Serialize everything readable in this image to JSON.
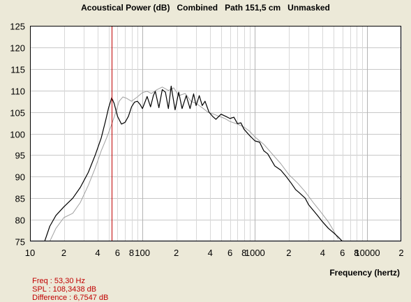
{
  "title": "Acoustical Power (dB)   Combined   Path 151,5 cm   Unmasked",
  "status": {
    "freq": "Freq : 53,30 Hz",
    "spl": "SPL : 108,3438 dB",
    "difference": "Difference : 6,7547 dB"
  },
  "colors": {
    "background": "#ece9d8",
    "plot_bg": "#ffffff",
    "cursor": "#c00000",
    "status_text": "#c00000"
  },
  "chart_data": {
    "type": "line",
    "title": "Acoustical Power (dB)   Combined   Path 151,5 cm   Unmasked",
    "xlabel": "Frequency (hertz)",
    "ylabel": "",
    "x_scale": "log",
    "xlim": [
      10,
      20000
    ],
    "ylim": [
      75,
      125
    ],
    "grid": true,
    "y_ticks": [
      75,
      80,
      85,
      90,
      95,
      100,
      105,
      110,
      115,
      120,
      125
    ],
    "x_tick_labels": [
      {
        "value": 10,
        "label": "10"
      },
      {
        "value": 20,
        "label": "2"
      },
      {
        "value": 40,
        "label": "4"
      },
      {
        "value": 60,
        "label": "6"
      },
      {
        "value": 80,
        "label": "8"
      },
      {
        "value": 100,
        "label": "100"
      },
      {
        "value": 200,
        "label": "2"
      },
      {
        "value": 400,
        "label": "4"
      },
      {
        "value": 600,
        "label": "6"
      },
      {
        "value": 800,
        "label": "8"
      },
      {
        "value": 1000,
        "label": "1000"
      },
      {
        "value": 2000,
        "label": "2"
      },
      {
        "value": 4000,
        "label": "4"
      },
      {
        "value": 6000,
        "label": "6"
      },
      {
        "value": 8000,
        "label": "8"
      },
      {
        "value": 10000,
        "label": "10000"
      },
      {
        "value": 20000,
        "label": "2"
      }
    ],
    "cursor_x": 53.3,
    "series": [
      {
        "color": "#000000",
        "x": [
          13.5,
          15,
          17,
          20,
          24,
          28,
          33,
          38,
          43,
          47,
          50,
          53.3,
          56,
          60,
          65,
          70,
          75,
          80,
          85,
          90,
          95,
          100,
          110,
          118,
          125,
          130,
          140,
          150,
          160,
          170,
          180,
          195,
          210,
          225,
          245,
          265,
          285,
          300,
          320,
          340,
          360,
          390,
          420,
          450,
          500,
          550,
          600,
          650,
          700,
          750,
          800,
          900,
          1000,
          1100,
          1200,
          1300,
          1500,
          1700,
          1900,
          2100,
          2300,
          2500,
          2800,
          3000,
          3300,
          3600,
          4000,
          4500,
          5000,
          5500,
          6000
        ],
        "y": [
          75,
          78.5,
          81,
          83,
          85,
          87.5,
          91,
          95,
          99,
          103,
          106,
          108.3,
          107,
          104,
          102.2,
          102.6,
          104,
          106.2,
          107.3,
          107.5,
          106.8,
          105.8,
          108.6,
          106.2,
          108.8,
          109.8,
          106.0,
          110.2,
          109.6,
          105.8,
          111.0,
          105.5,
          109.6,
          105.8,
          108.8,
          105.8,
          109.2,
          106.5,
          108.8,
          106.5,
          107.5,
          105.0,
          104.0,
          103.3,
          104.5,
          104.0,
          103.5,
          103.8,
          102.3,
          102.5,
          101.0,
          99.5,
          98.3,
          98.0,
          96.0,
          95.3,
          92.5,
          91.5,
          90.0,
          88.5,
          87.0,
          86.2,
          85.0,
          83.5,
          82.2,
          81.0,
          79.5,
          78.0,
          77.0,
          76.0,
          75.0
        ]
      },
      {
        "color": "#a0a0a0",
        "x": [
          15,
          17,
          20,
          24,
          28,
          33,
          38,
          43,
          48,
          53,
          58,
          62,
          67,
          72,
          80,
          90,
          100,
          110,
          120,
          135,
          150,
          170,
          190,
          210,
          240,
          270,
          300,
          340,
          380,
          430,
          480,
          540,
          600,
          700,
          800,
          900,
          1000,
          1200,
          1400,
          1700,
          2000,
          2400,
          2800,
          3300,
          3800,
          4500,
          5000,
          5500
        ],
        "y": [
          75,
          78,
          80.5,
          81.5,
          84,
          88,
          92,
          96,
          99,
          102,
          105,
          107.5,
          108.5,
          108.2,
          107.5,
          108.5,
          109.5,
          109.8,
          109.3,
          110.2,
          110.8,
          110.0,
          110.6,
          108.8,
          109.3,
          107.5,
          107.0,
          106.0,
          105.0,
          104.5,
          104.0,
          103.5,
          102.8,
          102.2,
          101.5,
          100.5,
          99.2,
          97.5,
          95.5,
          93.0,
          90.5,
          88.5,
          86.5,
          84.0,
          82.0,
          79.5,
          77.5,
          75.5
        ]
      }
    ]
  }
}
